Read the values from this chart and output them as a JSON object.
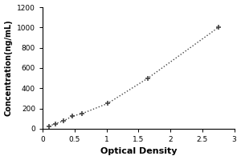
{
  "x_data": [
    0.1,
    0.2,
    0.32,
    0.47,
    0.62,
    1.02,
    1.65,
    2.75
  ],
  "y_data": [
    25,
    50,
    75,
    125,
    150,
    250,
    500,
    1000
  ],
  "xlabel": "Optical Density",
  "ylabel": "Concentration(ng/mL)",
  "xlim": [
    0,
    3.0
  ],
  "ylim": [
    0,
    1200
  ],
  "xticks": [
    0,
    0.5,
    1.0,
    1.5,
    2.0,
    2.5,
    3.0
  ],
  "xtick_labels": [
    "0",
    "0.5",
    "1",
    "1.5",
    "2",
    "2.5",
    "3"
  ],
  "yticks": [
    0,
    200,
    400,
    600,
    800,
    1000,
    1200
  ],
  "ytick_labels": [
    "0",
    "200",
    "400",
    "600",
    "800",
    "1000",
    "1200"
  ],
  "line_color": "#444444",
  "marker_color": "#444444",
  "background_color": "#ffffff",
  "marker_style": "+",
  "marker_size": 5,
  "xlabel_fontsize": 8,
  "ylabel_fontsize": 7,
  "tick_fontsize": 6.5,
  "label_fontweight": "bold"
}
